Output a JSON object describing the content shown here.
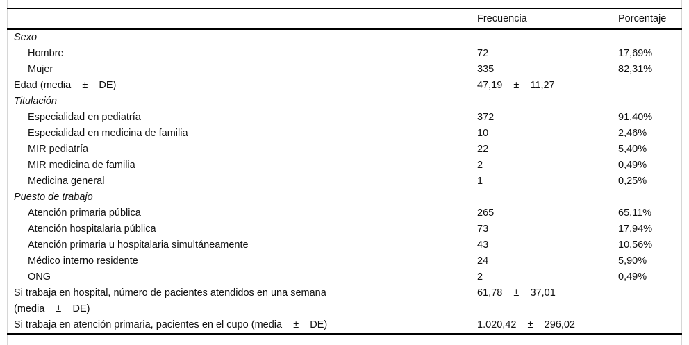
{
  "table": {
    "header": {
      "frequency": "Frecuencia",
      "percentage": "Porcentaje"
    },
    "rows": [
      {
        "label": "Sexo",
        "freq": "",
        "pct": ""
      },
      {
        "label": "Hombre",
        "freq": "72",
        "pct": "17,69%"
      },
      {
        "label": "Mujer",
        "freq": "335",
        "pct": "82,31%"
      },
      {
        "label": "Edad (media    ±    DE)",
        "freq": "47,19    ±    11,27",
        "pct": ""
      },
      {
        "label": "Titulación",
        "freq": "",
        "pct": ""
      },
      {
        "label": "Especialidad en pediatría",
        "freq": "372",
        "pct": "91,40%"
      },
      {
        "label": "Especialidad en medicina de familia",
        "freq": "10",
        "pct": "2,46%"
      },
      {
        "label": "MIR pediatría",
        "freq": "22",
        "pct": "5,40%"
      },
      {
        "label": "MIR medicina de familia",
        "freq": "2",
        "pct": "0,49%"
      },
      {
        "label": "Medicina general",
        "freq": "1",
        "pct": "0,25%"
      },
      {
        "label": "Puesto de trabajo",
        "freq": "",
        "pct": ""
      },
      {
        "label": "Atención primaria pública",
        "freq": "265",
        "pct": "65,11%"
      },
      {
        "label": "Atención hospitalaria pública",
        "freq": "73",
        "pct": "17,94%"
      },
      {
        "label": "Atención primaria u hospitalaria simultáneamente",
        "freq": "43",
        "pct": "10,56%"
      },
      {
        "label": "Médico interno residente",
        "freq": "24",
        "pct": "5,90%"
      },
      {
        "label": "ONG",
        "freq": "2",
        "pct": "0,49%"
      },
      {
        "label": "Si trabaja en hospital, número de pacientes atendidos en una semana\n(media    ±    DE)",
        "freq": "61,78    ±    37,01",
        "pct": ""
      },
      {
        "label": "Si trabaja en atención primaria, pacientes en el cupo (media    ±    DE)",
        "freq": "1.020,42    ±    296,02",
        "pct": ""
      }
    ]
  }
}
